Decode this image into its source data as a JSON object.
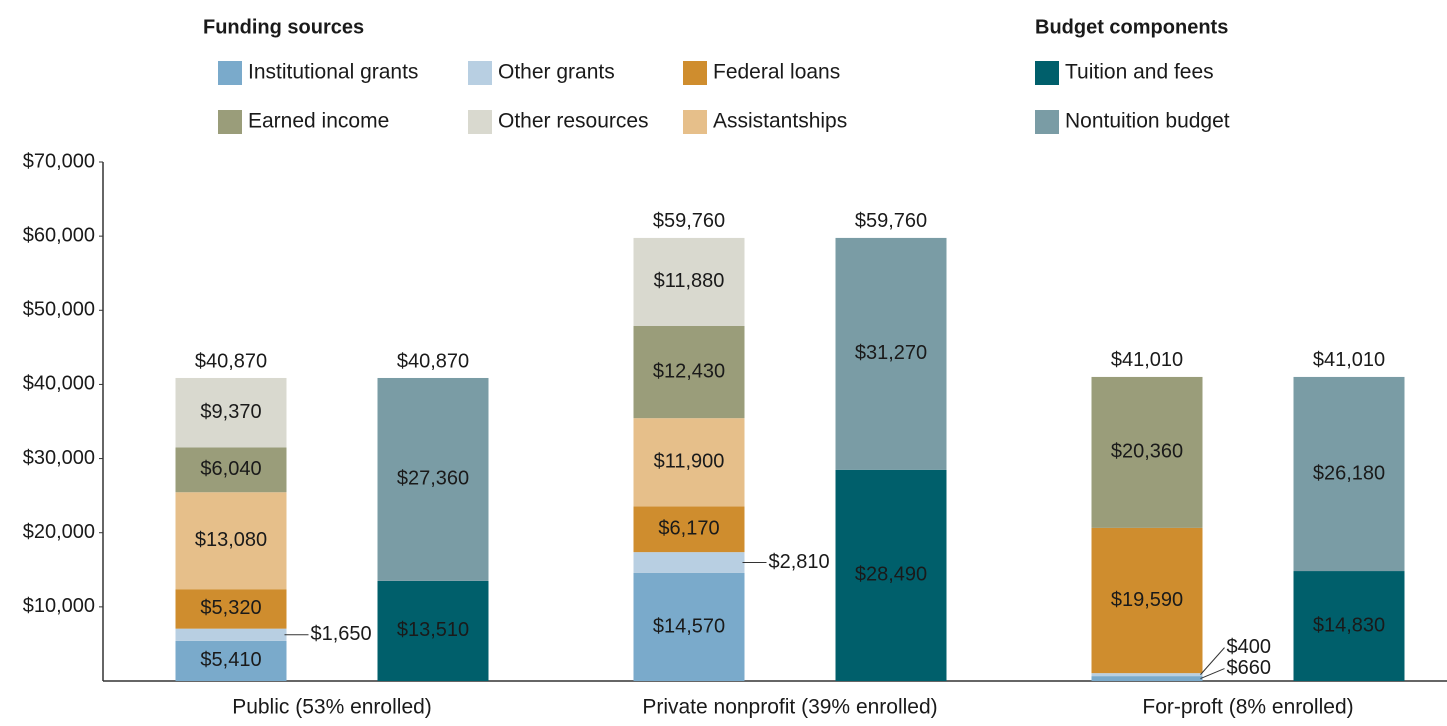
{
  "chart_data": {
    "type": "grouped-stacked-bar",
    "categories": [
      "Public (53% enrolled)",
      "Private nonprofit (39% enrolled)",
      "For-proft (8% enrolled)"
    ],
    "ylim": [
      0,
      70000
    ],
    "yticks": [
      {
        "value": 10000,
        "label": "$10,000"
      },
      {
        "value": 20000,
        "label": "$20,000"
      },
      {
        "value": 30000,
        "label": "$30,000"
      },
      {
        "value": 40000,
        "label": "$40,000"
      },
      {
        "value": 50000,
        "label": "$50,000"
      },
      {
        "value": 60000,
        "label": "$60,000"
      },
      {
        "value": 70000,
        "label": "$70,000"
      }
    ],
    "groups": [
      {
        "name": "Funding sources",
        "totals": [
          40870,
          59760,
          41010
        ],
        "total_labels": [
          "$40,870",
          "$59,760",
          "$41,010"
        ],
        "series": [
          {
            "name": "Institutional grants",
            "color": "#7aaacb",
            "values": [
              5410,
              14570,
              660
            ],
            "value_labels": [
              "$5,410",
              "$14,570",
              "$660"
            ]
          },
          {
            "name": "Other grants",
            "color": "#b8cfe2",
            "values": [
              1650,
              2810,
              400
            ],
            "value_labels": [
              "$1,650",
              "$2,810",
              "$400"
            ]
          },
          {
            "name": "Federal loans",
            "color": "#cf8d2e",
            "values": [
              5320,
              6170,
              19590
            ],
            "value_labels": [
              "$5,320",
              "$6,170",
              "$19,590"
            ]
          },
          {
            "name": "Assistantships",
            "color": "#e6bf8a",
            "values": [
              13080,
              11900,
              null
            ],
            "value_labels": [
              "$13,080",
              "$11,900",
              null
            ]
          },
          {
            "name": "Earned income",
            "color": "#9a9d7a",
            "values": [
              6040,
              12430,
              20360
            ],
            "value_labels": [
              "$6,040",
              "$12,430",
              "$20,360"
            ]
          },
          {
            "name": "Other resources",
            "color": "#d9d9cf",
            "values": [
              9370,
              11880,
              null
            ],
            "value_labels": [
              "$9,370",
              "$11,880",
              null
            ]
          }
        ]
      },
      {
        "name": "Budget components",
        "totals": [
          40870,
          59760,
          41010
        ],
        "total_labels": [
          "$40,870",
          "$59,760",
          "$41,010"
        ],
        "series": [
          {
            "name": "Tuition and fees",
            "color": "#005f6b",
            "values": [
              13510,
              28490,
              14830
            ],
            "value_labels": [
              "$13,510",
              "$28,490",
              "$14,830"
            ]
          },
          {
            "name": "Nontuition budget",
            "color": "#7a9ca5",
            "values": [
              27360,
              31270,
              26180
            ],
            "value_labels": [
              "$27,360",
              "$31,270",
              "$26,180"
            ]
          }
        ]
      }
    ]
  }
}
